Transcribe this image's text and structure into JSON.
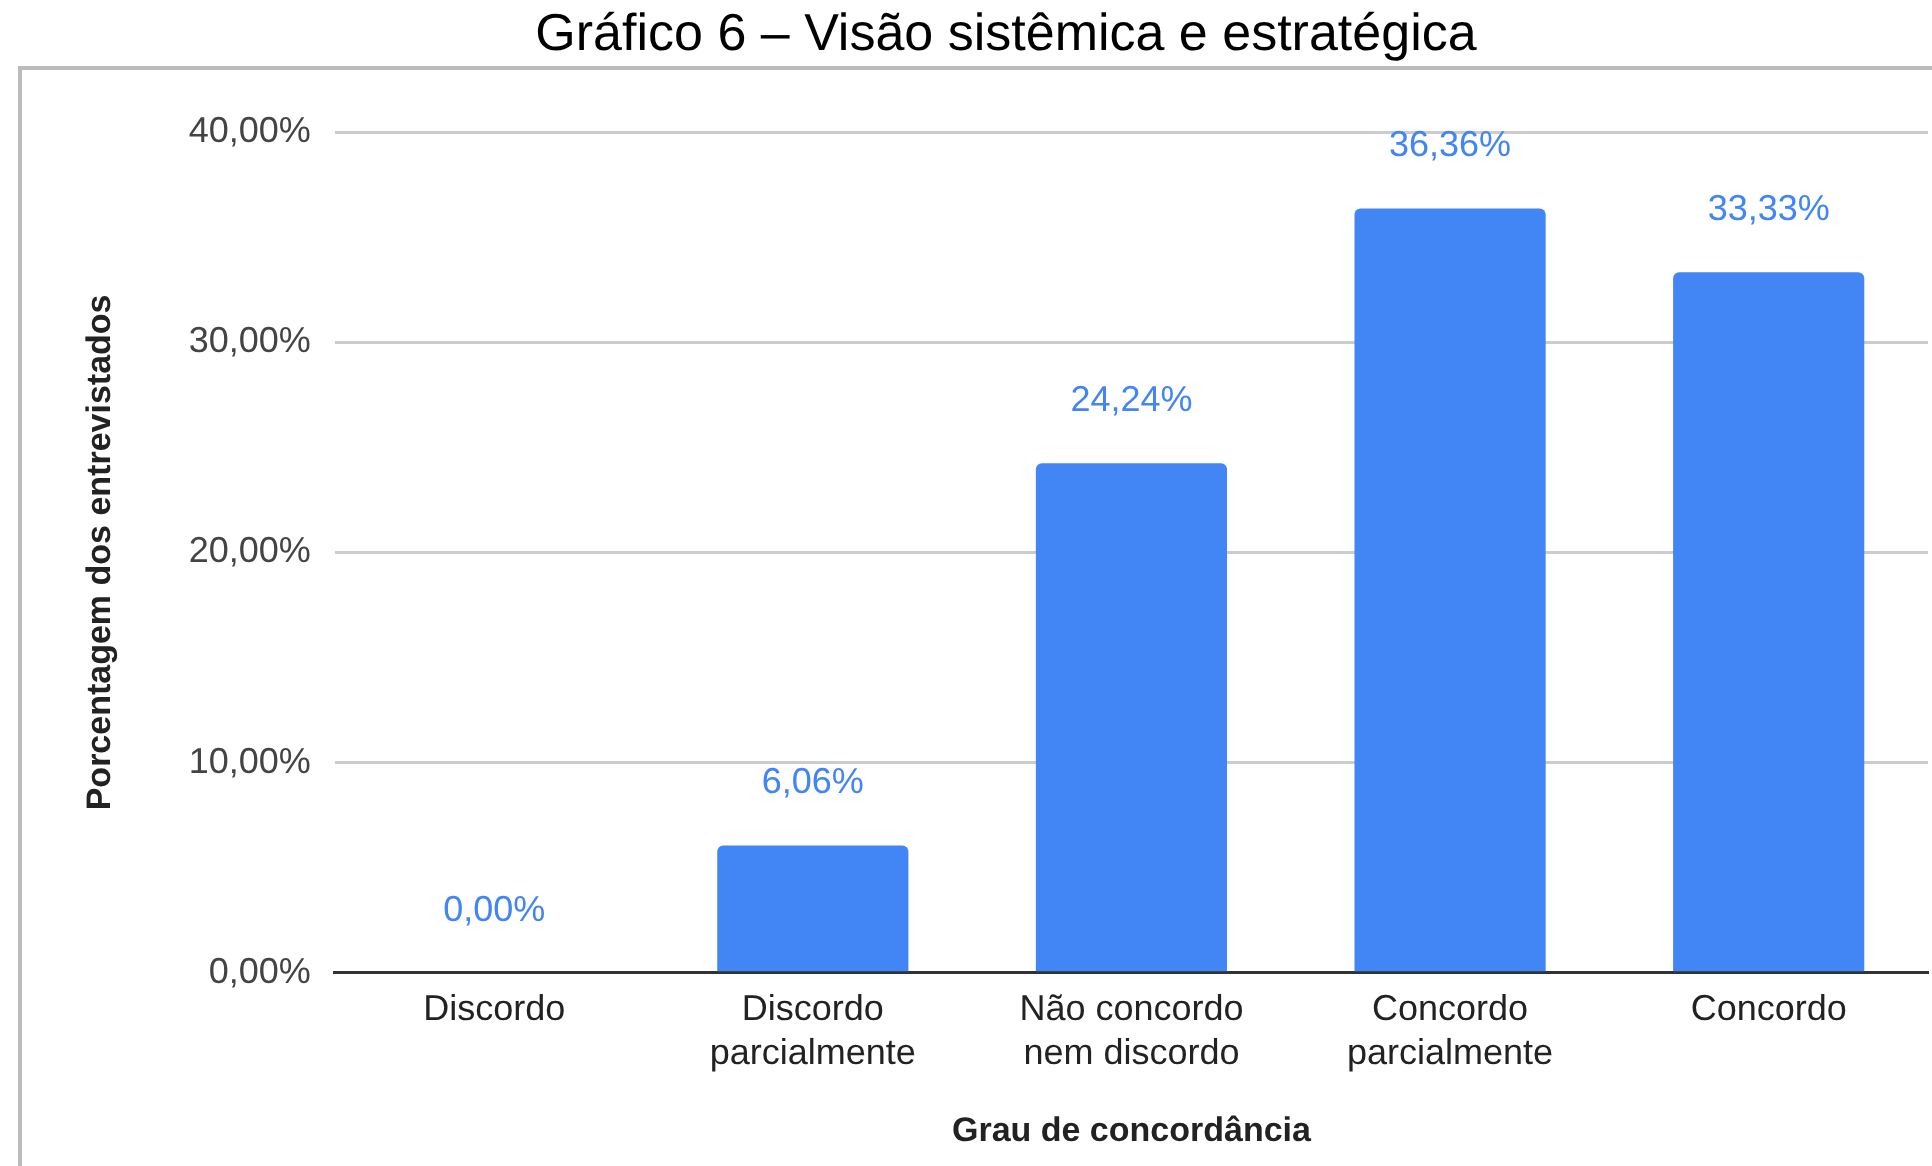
{
  "chart_data": {
    "type": "bar",
    "title": "Gráfico 6 – Visão sistêmica e estratégica",
    "xlabel": "Grau de concordância",
    "ylabel": "Porcentagem dos entrevistados",
    "categories": [
      "Discordo",
      "Discordo parcialmente",
      "Não concordo nem discordo",
      "Concordo parcialmente",
      "Concordo"
    ],
    "values": [
      0,
      6.06,
      24.24,
      36.36,
      33.33
    ],
    "value_labels": [
      "0,00%",
      "6,06%",
      "24,24%",
      "36,36%",
      "33,33%"
    ],
    "color": "#4285f4",
    "ylim": [
      0,
      40
    ],
    "yticks": [
      {
        "value": 0,
        "label": "0,00%"
      },
      {
        "value": 10,
        "label": "10,00%"
      },
      {
        "value": 20,
        "label": "20,00%"
      },
      {
        "value": 30,
        "label": "30,00%"
      },
      {
        "value": 40,
        "label": "40,00%"
      }
    ],
    "grid": "y"
  }
}
